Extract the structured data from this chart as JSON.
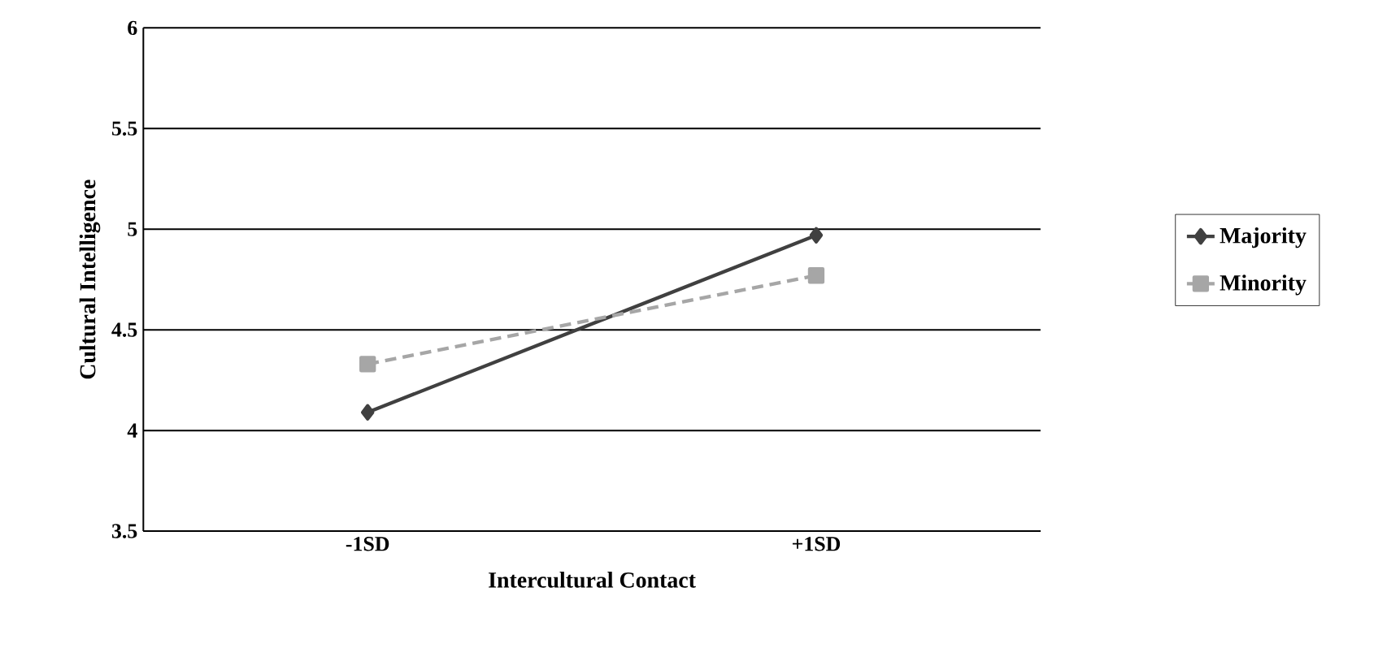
{
  "chart_data": {
    "type": "line",
    "xlabel": "Intercultural Contact",
    "ylabel": "Cultural Intelligence",
    "categories": [
      "-1SD",
      "+1SD"
    ],
    "ylim": [
      3.5,
      6
    ],
    "yticks": [
      3.5,
      4,
      4.5,
      5,
      5.5,
      6
    ],
    "grid": "y",
    "legend": "right",
    "series": [
      {
        "name": "Majority",
        "color": "#404040",
        "marker": "diamond",
        "line_style": "solid",
        "values": [
          4.09,
          4.97
        ]
      },
      {
        "name": "Minority",
        "color": "#a6a6a6",
        "marker": "square",
        "line_style": "dashed",
        "values": [
          4.33,
          4.77
        ]
      }
    ]
  }
}
